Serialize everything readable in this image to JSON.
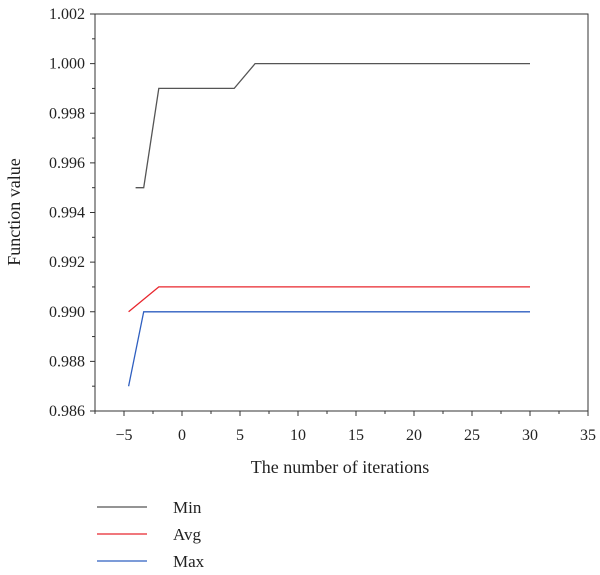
{
  "chart_data": {
    "type": "line",
    "xlabel": "The number of iterations",
    "ylabel": "Function value",
    "xlim": [
      -7.5,
      35
    ],
    "ylim": [
      0.986,
      1.002
    ],
    "x_ticks": [
      "-5",
      "0",
      "5",
      "10",
      "15",
      "20",
      "25",
      "30",
      "35"
    ],
    "y_ticks": [
      "0.986",
      "0.988",
      "0.990",
      "0.992",
      "0.994",
      "0.996",
      "0.998",
      "1.000",
      "1.002"
    ],
    "grid": false,
    "legend_position": "bottom-left, below plot",
    "series": [
      {
        "name": "Min",
        "color": "#555555",
        "points": [
          [
            -4,
            0.995
          ],
          [
            -3.3,
            0.995
          ],
          [
            -2,
            0.999
          ],
          [
            4.5,
            0.999
          ],
          [
            6.3,
            1.0
          ],
          [
            30,
            1.0
          ]
        ]
      },
      {
        "name": "Avg",
        "color": "#e8262d",
        "points": [
          [
            -4.6,
            0.99
          ],
          [
            -2,
            0.991
          ],
          [
            30,
            0.991
          ]
        ]
      },
      {
        "name": "Max",
        "color": "#2f5fc0",
        "points": [
          [
            -4.6,
            0.987
          ],
          [
            -3.3,
            0.99
          ],
          [
            30,
            0.99
          ]
        ]
      }
    ]
  }
}
